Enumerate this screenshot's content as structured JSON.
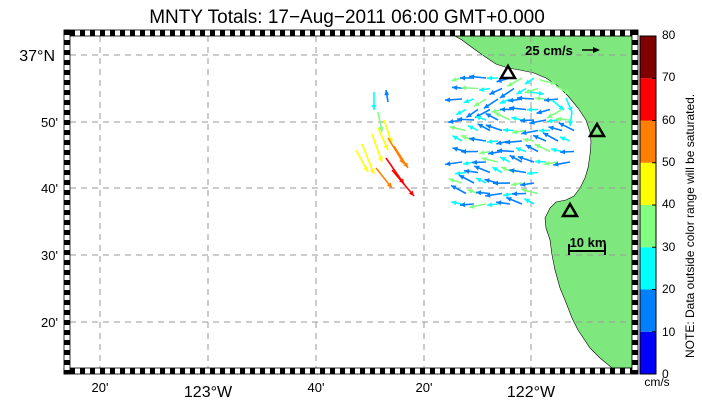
{
  "title": "MNTY Totals: 17−Aug−2011 06:00 GMT+0.000",
  "axes": {
    "lat_ticks": [
      "37°N",
      "50'",
      "40'",
      "30'",
      "20'"
    ],
    "lon_ticks": [
      "20'",
      "123°W",
      "40'",
      "20'",
      "122°W",
      "40'"
    ]
  },
  "scale_vector_label": "25 cm/s",
  "scale_bar_label": "10 km",
  "colorbar": {
    "ticks": [
      "0",
      "10",
      "20",
      "30",
      "40",
      "50",
      "60",
      "70",
      "80"
    ],
    "unit": "cm/s",
    "note": "NOTE: Data outside color range will be saturated.",
    "colors": [
      "#0000ff",
      "#0080ff",
      "#00ffff",
      "#80ff80",
      "#ffff00",
      "#ff8000",
      "#ff0000",
      "#800000"
    ]
  },
  "colors": {
    "land": "#7ee87e",
    "ocean": "#ffffff",
    "grid": "#9a9a9a",
    "frame": "#000000",
    "site": "#000000"
  },
  "sites": [
    "site-1",
    "site-2",
    "site-3"
  ]
}
